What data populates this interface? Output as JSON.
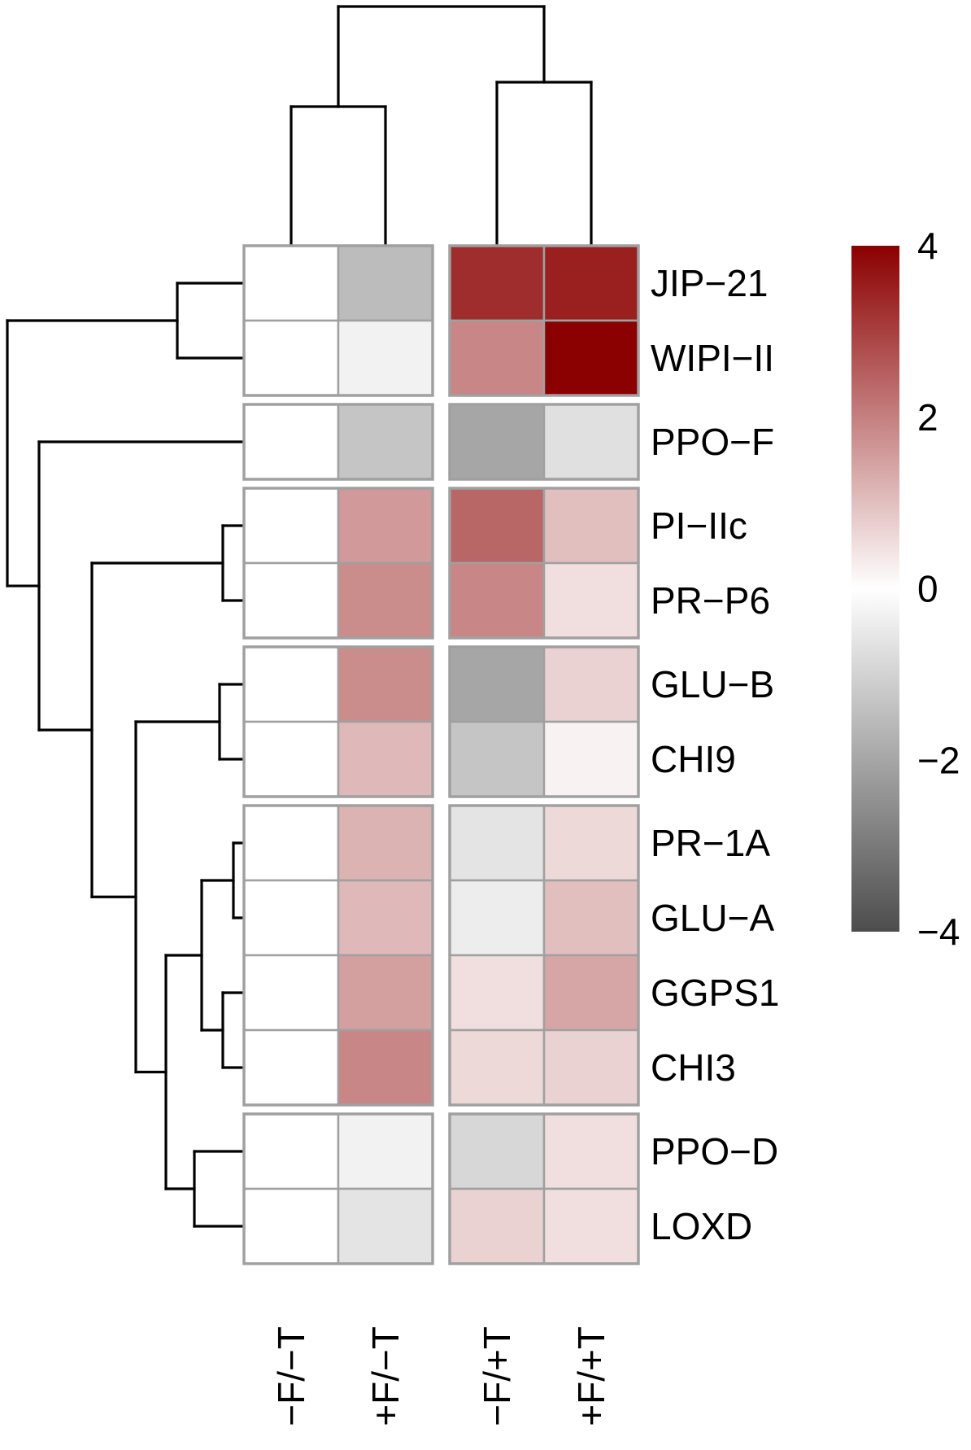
{
  "chart_data": {
    "type": "heatmap",
    "rows": [
      "JIP−21",
      "WIPI−II",
      "PPO−F",
      "PI−IIc",
      "PR−P6",
      "GLU−B",
      "CHI9",
      "PR−1A",
      "GLU−A",
      "GGPS1",
      "CHI3",
      "PPO−D",
      "LOXD"
    ],
    "columns": [
      "−F/−T",
      "+F/−T",
      "−F/+T",
      "+F/+T"
    ],
    "values": [
      [
        0,
        -1.5,
        3.3,
        3.5
      ],
      [
        0,
        -0.3,
        1.9,
        4.0
      ],
      [
        0,
        -1.3,
        -2.0,
        -0.7
      ],
      [
        0,
        1.6,
        2.4,
        1.0
      ],
      [
        0,
        1.8,
        1.9,
        0.5
      ],
      [
        0,
        1.8,
        -2.0,
        0.7
      ],
      [
        0,
        1.1,
        -1.3,
        0.2
      ],
      [
        0,
        1.2,
        -0.6,
        0.6
      ],
      [
        0,
        1.1,
        -0.4,
        1.0
      ],
      [
        0,
        1.5,
        0.5,
        1.4
      ],
      [
        0,
        1.9,
        0.6,
        0.7
      ],
      [
        0,
        -0.3,
        -0.9,
        0.5
      ],
      [
        0,
        -0.6,
        0.7,
        0.5
      ]
    ],
    "row_groups": [
      [
        0,
        1
      ],
      [
        2
      ],
      [
        3,
        4
      ],
      [
        5,
        6
      ],
      [
        7,
        8,
        9,
        10
      ],
      [
        11,
        12
      ]
    ],
    "column_groups": [
      [
        0,
        1
      ],
      [
        2,
        3
      ]
    ],
    "color_scale": {
      "min": -4,
      "max": 4,
      "ticks": [
        4,
        2,
        0,
        -2,
        -4
      ],
      "tick_labels": [
        "4",
        "2",
        "0",
        "−2",
        "−4"
      ],
      "low_color": "#4d4d4d",
      "mid_color": "#ffffff",
      "high_color": "#8b0000"
    },
    "cell_border_color": "#a0a0a0",
    "row_dendrogram": true,
    "column_dendrogram": true,
    "legend": "right"
  }
}
